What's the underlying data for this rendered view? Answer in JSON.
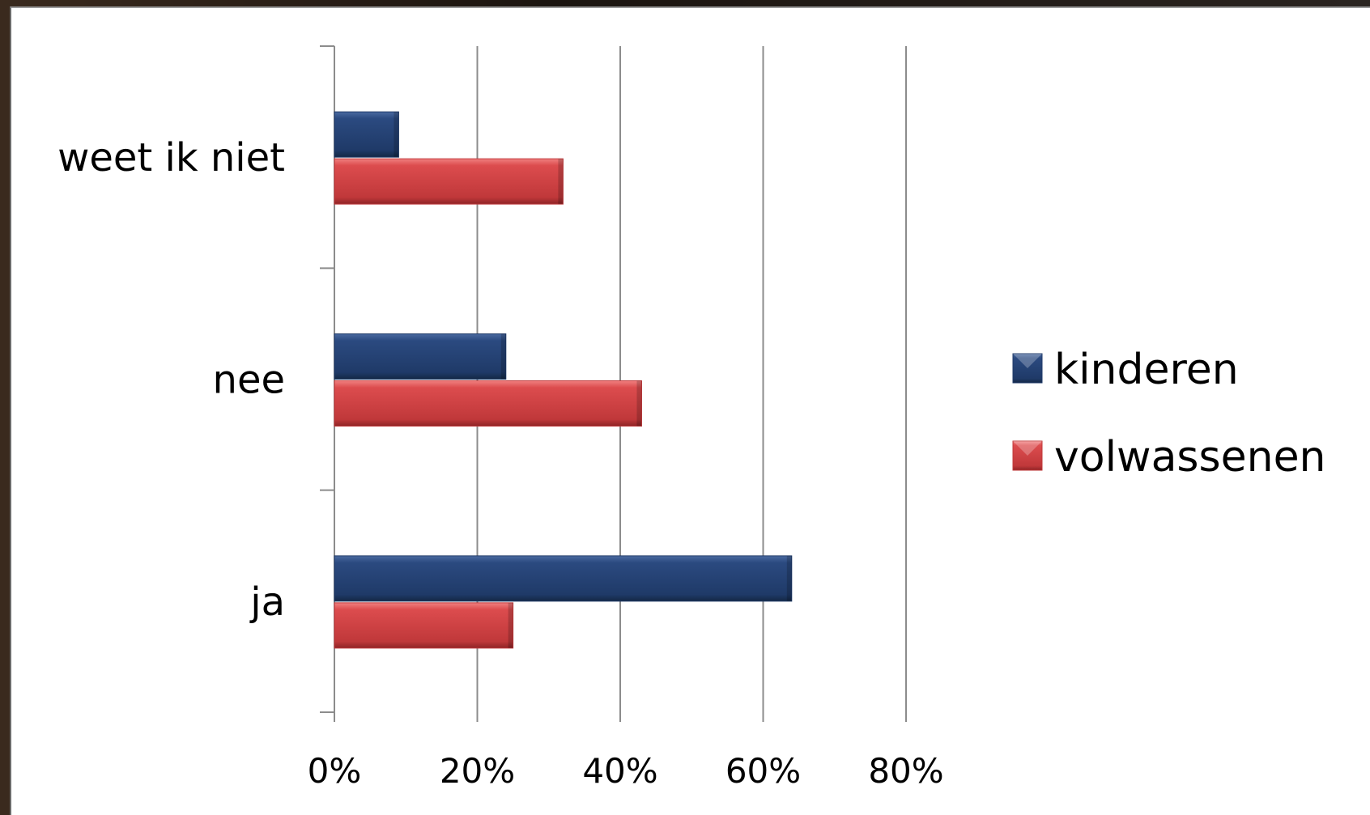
{
  "chart_data": {
    "type": "bar",
    "orientation": "horizontal",
    "categories": [
      "ja",
      "nee",
      "weet ik niet"
    ],
    "series": [
      {
        "name": "kinderen",
        "values": [
          64,
          24,
          9
        ],
        "color": "#1f3a68"
      },
      {
        "name": "volwassenen",
        "values": [
          25,
          43,
          32
        ],
        "color": "#c0383a"
      }
    ],
    "xlim": [
      0,
      80
    ],
    "xticks": [
      "0%",
      "20%",
      "40%",
      "60%",
      "80%"
    ],
    "grid": "vertical",
    "legend_position": "right"
  }
}
